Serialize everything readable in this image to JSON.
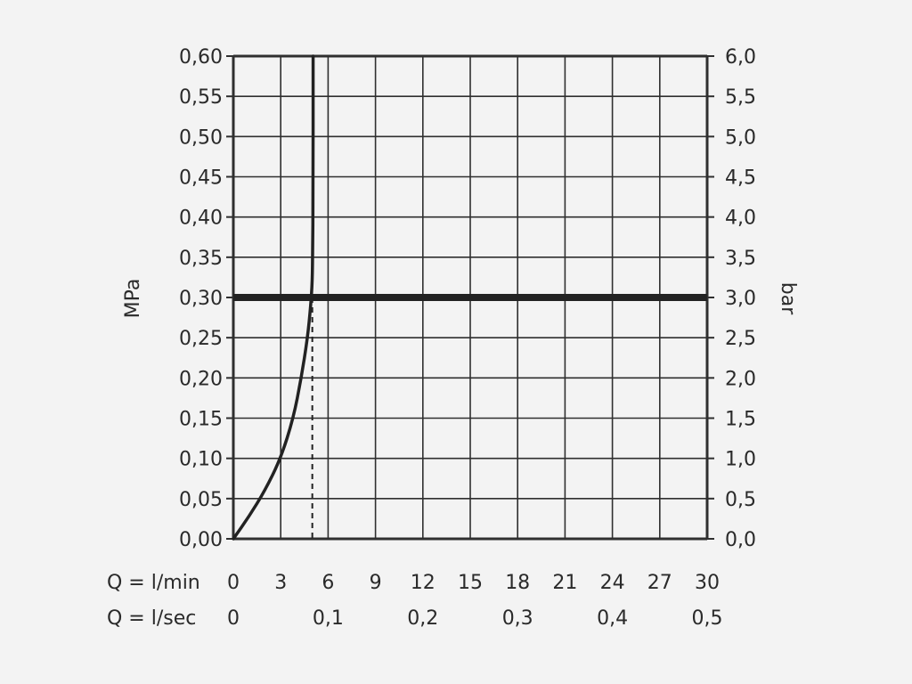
{
  "chart_data": {
    "type": "line",
    "left_axis": {
      "label": "MPa",
      "ticks": [
        "0,00",
        "0,05",
        "0,10",
        "0,15",
        "0,20",
        "0,25",
        "0,30",
        "0,35",
        "0,40",
        "0,45",
        "0,50",
        "0,55",
        "0,60"
      ],
      "ylim": [
        0,
        0.6
      ]
    },
    "right_axis": {
      "label": "bar",
      "ticks": [
        "0,0",
        "0,5",
        "1,0",
        "1,5",
        "2,0",
        "2,5",
        "3,0",
        "3,5",
        "4,0",
        "4,5",
        "5,0",
        "5,5",
        "6,0"
      ],
      "ylim": [
        0,
        6
      ]
    },
    "x_axis_lmin": {
      "label": "Q = l/min",
      "ticks": [
        {
          "v": 0,
          "t": "0"
        },
        {
          "v": 3,
          "t": "3"
        },
        {
          "v": 6,
          "t": "6"
        },
        {
          "v": 9,
          "t": "9"
        },
        {
          "v": 12,
          "t": "12"
        },
        {
          "v": 15,
          "t": "15"
        },
        {
          "v": 18,
          "t": "18"
        },
        {
          "v": 21,
          "t": "21"
        },
        {
          "v": 24,
          "t": "24"
        },
        {
          "v": 27,
          "t": "27"
        },
        {
          "v": 30,
          "t": "30"
        }
      ],
      "xlim": [
        0,
        30
      ]
    },
    "x_axis_lsec": {
      "label": "Q = l/sec",
      "ticks": [
        {
          "v": 0,
          "t": "0"
        },
        {
          "v": 6,
          "t": "0,1"
        },
        {
          "v": 12,
          "t": "0,2"
        },
        {
          "v": 18,
          "t": "0,3"
        },
        {
          "v": 24,
          "t": "0,4"
        },
        {
          "v": 30,
          "t": "0,5"
        }
      ]
    },
    "grid": true,
    "grid_x_step": 3,
    "grid_y_step": 0.05,
    "series": [
      {
        "x": [
          0,
          1.0,
          2.0,
          3.0,
          3.8,
          4.3,
          4.7,
          4.9,
          5.0,
          5.02,
          5.05,
          5.05
        ],
        "y": [
          0,
          0.028,
          0.06,
          0.1,
          0.15,
          0.2,
          0.25,
          0.29,
          0.32,
          0.36,
          0.42,
          0.6
        ]
      }
    ],
    "reference_line_y": 0.3,
    "operating_point_x": 5.0,
    "colors": {
      "line": "#222222",
      "grid": "#2f2f2f",
      "background": "#f3f3f3"
    }
  }
}
